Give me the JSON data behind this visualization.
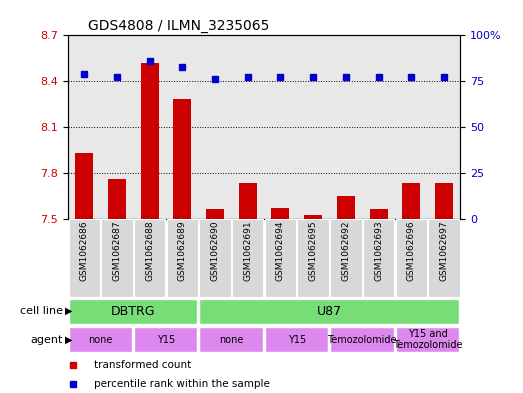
{
  "title": "GDS4808 / ILMN_3235065",
  "samples": [
    "GSM1062686",
    "GSM1062687",
    "GSM1062688",
    "GSM1062689",
    "GSM1062690",
    "GSM1062691",
    "GSM1062694",
    "GSM1062695",
    "GSM1062692",
    "GSM1062693",
    "GSM1062696",
    "GSM1062697"
  ],
  "transformed_count": [
    7.93,
    7.76,
    8.52,
    8.28,
    7.56,
    7.73,
    7.57,
    7.52,
    7.65,
    7.56,
    7.73,
    7.73
  ],
  "percentile_rank": [
    79,
    77,
    86,
    83,
    76,
    77,
    77,
    77,
    77,
    77,
    77,
    77
  ],
  "ylim_left": [
    7.5,
    8.7
  ],
  "ylim_right": [
    0,
    100
  ],
  "yticks_left": [
    7.5,
    7.8,
    8.1,
    8.4,
    8.7
  ],
  "yticks_right": [
    0,
    25,
    50,
    75,
    100
  ],
  "bar_color": "#cc0000",
  "dot_color": "#0000cc",
  "cell_line_color": "#77dd77",
  "agent_color": "#dd88ee",
  "sample_col_color": "#d8d8d8",
  "cell_line_labels": [
    {
      "label": "DBTRG",
      "start": 0,
      "end": 3
    },
    {
      "label": "U87",
      "start": 4,
      "end": 11
    }
  ],
  "agent_labels": [
    {
      "label": "none",
      "start": 0,
      "end": 1
    },
    {
      "label": "Y15",
      "start": 2,
      "end": 3
    },
    {
      "label": "none",
      "start": 4,
      "end": 5
    },
    {
      "label": "Y15",
      "start": 6,
      "end": 7
    },
    {
      "label": "Temozolomide",
      "start": 8,
      "end": 9
    },
    {
      "label": "Y15 and\nTemozolomide",
      "start": 10,
      "end": 11
    }
  ],
  "legend_items": [
    {
      "label": "transformed count",
      "color": "#cc0000"
    },
    {
      "label": "percentile rank within the sample",
      "color": "#0000cc"
    }
  ]
}
